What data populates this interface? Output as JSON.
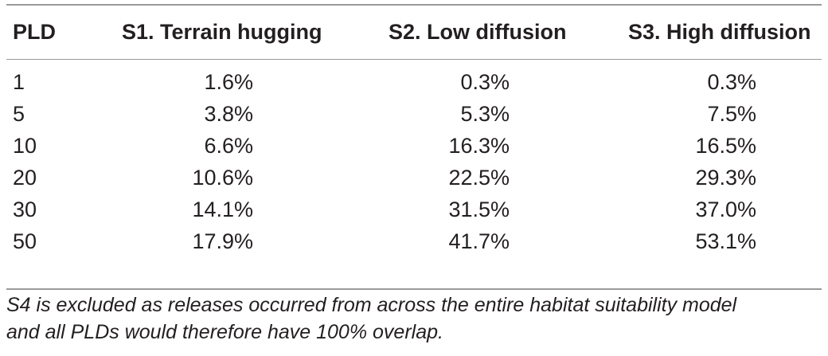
{
  "table": {
    "headers": [
      "PLD",
      "S1. Terrain hugging",
      "S2. Low diffusion",
      "S3. High diffusion"
    ],
    "rows": [
      [
        "1",
        "1.6%",
        "0.3%",
        "0.3%"
      ],
      [
        "5",
        "3.8%",
        "5.3%",
        "7.5%"
      ],
      [
        "10",
        "6.6%",
        "16.3%",
        "16.5%"
      ],
      [
        "20",
        "10.6%",
        "22.5%",
        "29.3%"
      ],
      [
        "30",
        "14.1%",
        "31.5%",
        "37.0%"
      ],
      [
        "50",
        "17.9%",
        "41.7%",
        "53.1%"
      ]
    ]
  },
  "footnote": {
    "line1": "S4 is excluded as releases occurred from across the entire habitat suitability model",
    "line2": "and all PLDs would therefore have 100% overlap."
  }
}
